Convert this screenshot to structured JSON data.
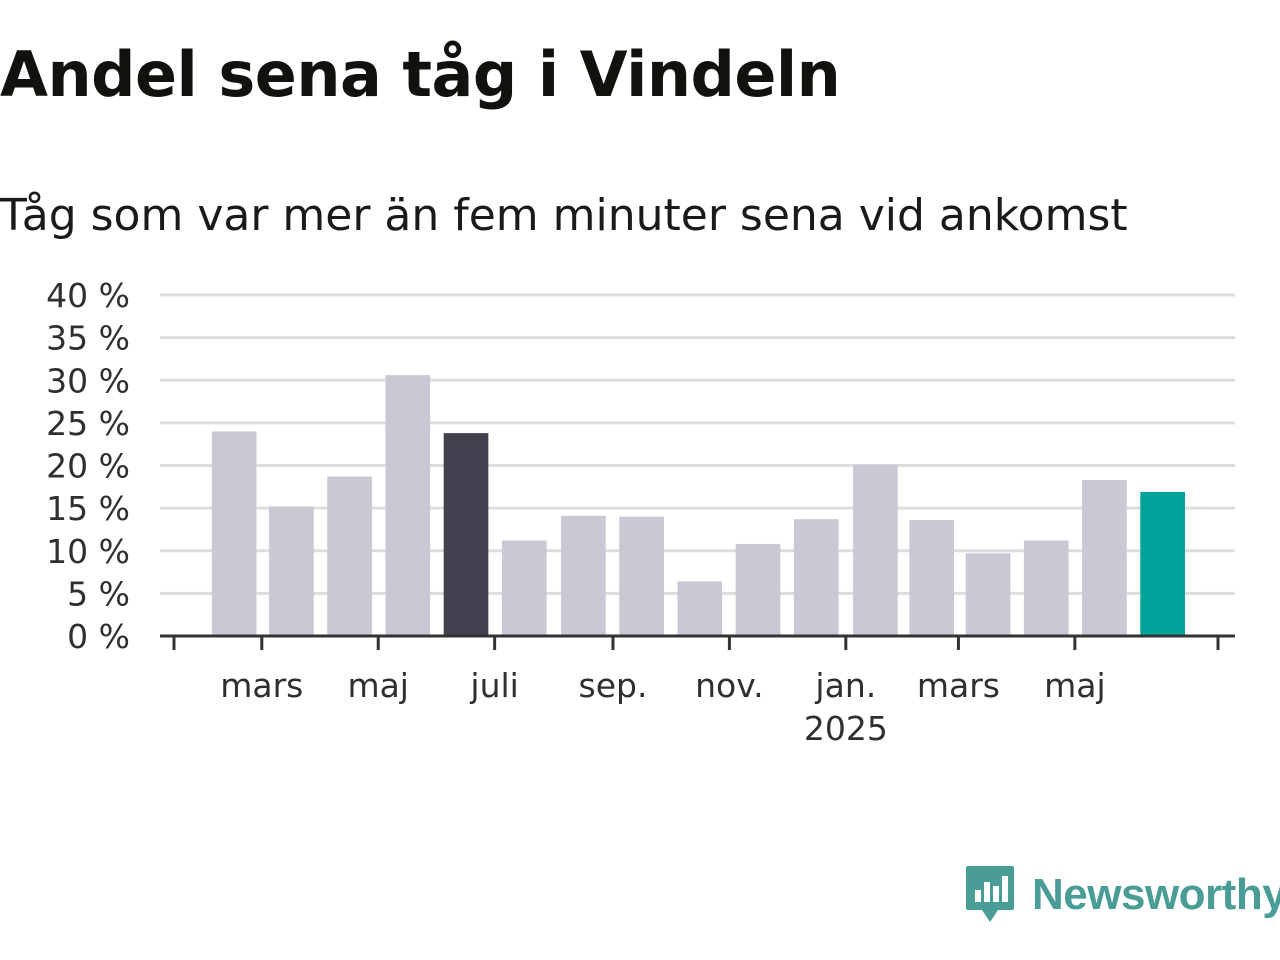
{
  "header": {
    "title": "Andel sena tåg i Vindeln",
    "subtitle": "Tåg som var mer än fem minuter sena vid ankomst"
  },
  "brand": {
    "name": "Newsworthy",
    "color": "#4a9d96",
    "icon": "newsworthy-chart-bubble-icon"
  },
  "chart_data": {
    "type": "bar",
    "ylim": [
      0,
      40
    ],
    "yticks": [
      0,
      5,
      10,
      15,
      20,
      25,
      30,
      35,
      40
    ],
    "ytick_suffix": " %",
    "grid": true,
    "x": [
      "2024-02",
      "2024-03",
      "2024-04",
      "2024-05",
      "2024-06",
      "2024-07",
      "2024-08",
      "2024-09",
      "2024-10",
      "2024-11",
      "2024-12",
      "2025-01",
      "2025-02",
      "2025-03",
      "2025-04",
      "2025-05",
      "2025-06"
    ],
    "values": [
      24,
      15.2,
      18.7,
      30.6,
      23.8,
      11.2,
      14.1,
      14,
      6.4,
      10.8,
      13.7,
      20.1,
      13.6,
      9.7,
      11.2,
      18.3,
      16.9
    ],
    "highlight": {
      "2024-06": "#43414e",
      "2025-06": "#00a39a"
    },
    "colors": {
      "default": "#c9c8d3",
      "highlight_dark": "#43414e",
      "highlight_latest": "#00a39a",
      "grid": "#dddddd",
      "axis": "#333333"
    },
    "xtick_labels": [
      {
        "at": "2024-03",
        "label": "mars"
      },
      {
        "at": "2024-05",
        "label": "maj"
      },
      {
        "at": "2024-07",
        "label": "juli"
      },
      {
        "at": "2024-09",
        "label": "sep."
      },
      {
        "at": "2024-11",
        "label": "nov."
      },
      {
        "at": "2025-01",
        "label": "jan.",
        "sublabel": "2025"
      },
      {
        "at": "2025-03",
        "label": "mars"
      },
      {
        "at": "2025-05",
        "label": "maj"
      }
    ],
    "xlim": [
      "2024-01-15",
      "2025-07-15"
    ]
  }
}
